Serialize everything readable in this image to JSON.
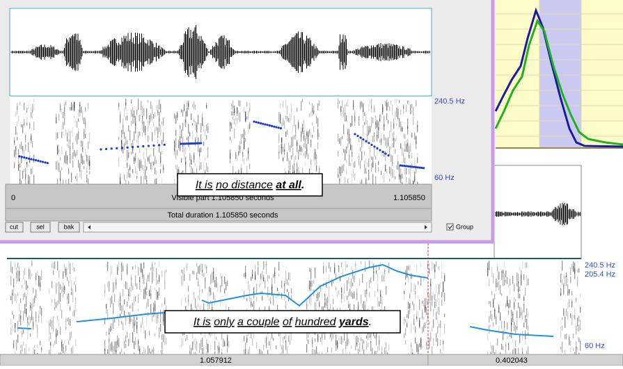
{
  "front_window": {
    "freq_top": "240.5 Hz",
    "freq_bottom": "60 Hz",
    "caption": [
      "It is",
      "no distance",
      "at all",
      "."
    ],
    "visible_start": "0",
    "visible_label": "Visible part 1.105850 seconds",
    "visible_end": "1.105850",
    "total_label": "Total duration 1.105850 seconds",
    "buttons": [
      "cut",
      "sel",
      "bak"
    ],
    "group": "Group"
  },
  "back_window": {
    "freq_labels": [
      "240.5 Hz",
      "205.4 Hz",
      "60 Hz"
    ],
    "caption": [
      "It is",
      "only",
      "a couple",
      "of",
      "hundred",
      "yards",
      "."
    ],
    "durations": [
      "1.057912",
      "0.402043"
    ]
  }
}
